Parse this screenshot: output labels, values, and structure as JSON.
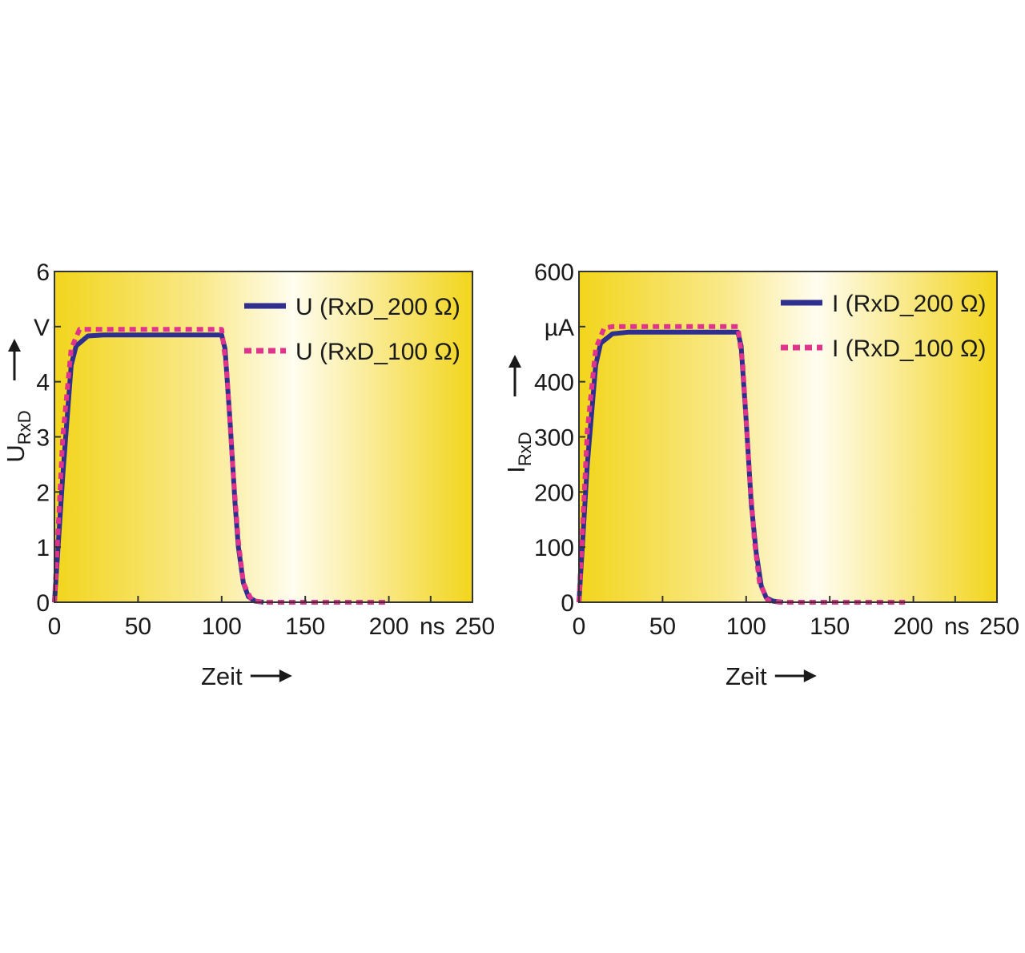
{
  "chart_data": [
    {
      "type": "line",
      "xlabel": "Zeit",
      "ylabel_main": "U",
      "ylabel_sub": "RxD",
      "x_unit": "ns",
      "y_unit": "V",
      "xlim": [
        0,
        250
      ],
      "ylim": [
        0,
        6
      ],
      "x_ticks": [
        0,
        50,
        100,
        150,
        200,
        250
      ],
      "y_ticks": [
        0,
        1,
        2,
        3,
        4,
        6
      ],
      "legend_position": "top-right",
      "series": [
        {
          "name": "U (RxD_200 Ω)",
          "style": "solid",
          "color": "#2e2f8f",
          "x": [
            0,
            5,
            10,
            13,
            20,
            30,
            50,
            80,
            100,
            102,
            105,
            108,
            110,
            113,
            116,
            120,
            125
          ],
          "y": [
            0,
            2.3,
            4.3,
            4.65,
            4.83,
            4.85,
            4.85,
            4.85,
            4.85,
            4.6,
            3.3,
            1.8,
            1.0,
            0.35,
            0.1,
            0.02,
            0
          ]
        },
        {
          "name": "U (RxD_100 Ω)",
          "style": "dotted",
          "color": "#e0338c",
          "x": [
            0,
            5,
            10,
            15,
            20,
            50,
            100,
            103,
            107,
            110,
            113,
            118,
            125,
            150,
            200
          ],
          "y": [
            0,
            3.0,
            4.6,
            4.95,
            4.95,
            4.95,
            4.95,
            4.2,
            2.3,
            1.1,
            0.35,
            0.03,
            0,
            0,
            0
          ]
        }
      ]
    },
    {
      "type": "line",
      "xlabel": "Zeit",
      "ylabel_main": "I",
      "ylabel_sub": "RxD",
      "x_unit": "ns",
      "y_unit": "µA",
      "xlim": [
        0,
        250
      ],
      "ylim": [
        0,
        600
      ],
      "x_ticks": [
        0,
        50,
        100,
        150,
        200,
        250
      ],
      "y_ticks": [
        0,
        100,
        200,
        300,
        400,
        600
      ],
      "legend_position": "top-right",
      "series": [
        {
          "name": "I (RxD_200 Ω)",
          "style": "solid",
          "color": "#2e2f8f",
          "x": [
            0,
            5,
            10,
            13,
            20,
            30,
            50,
            80,
            95,
            97,
            100,
            103,
            106,
            109,
            112,
            116,
            122
          ],
          "y": [
            0,
            250,
            430,
            470,
            487,
            490,
            490,
            490,
            490,
            465,
            330,
            180,
            90,
            30,
            8,
            2,
            0
          ]
        },
        {
          "name": "I (RxD_100 Ω)",
          "style": "dotted",
          "color": "#e0338c",
          "x": [
            0,
            5,
            10,
            15,
            20,
            50,
            95,
            98,
            102,
            105,
            108,
            113,
            120,
            150,
            195
          ],
          "y": [
            0,
            310,
            460,
            497,
            500,
            500,
            500,
            430,
            230,
            110,
            35,
            3,
            0,
            0,
            0
          ]
        }
      ]
    }
  ]
}
